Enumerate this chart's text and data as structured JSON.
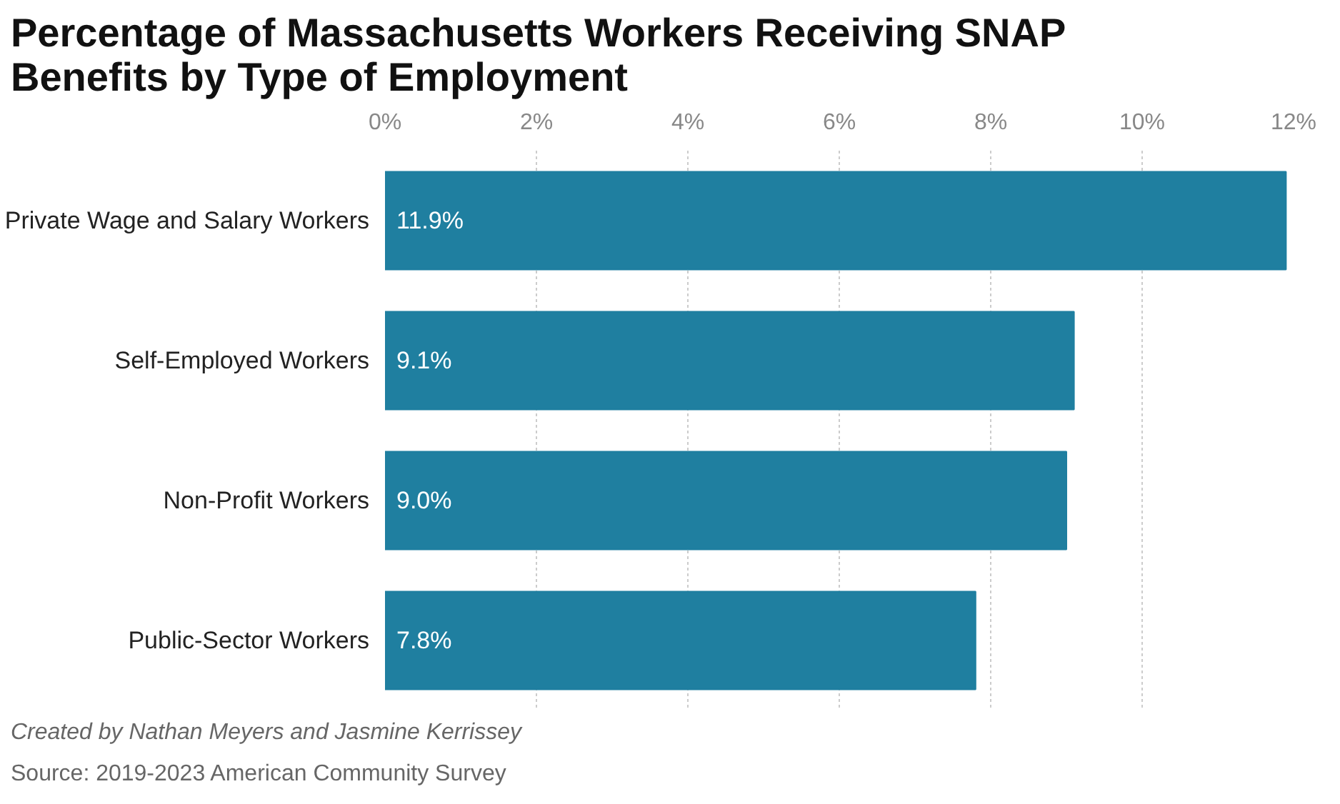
{
  "chart_data": {
    "type": "bar",
    "orientation": "horizontal",
    "title": "Percentage of Massachusetts Workers Receiving SNAP Benefits by Type of Employment",
    "categories": [
      "Private Wage and Salary Workers",
      "Self-Employed Workers",
      "Non-Profit Workers",
      "Public-Sector Workers"
    ],
    "values": [
      11.9,
      9.1,
      9.0,
      7.8
    ],
    "value_labels": [
      "11.9%",
      "9.1%",
      "9.0%",
      "7.8%"
    ],
    "color": "#1f7fa0",
    "xlim": [
      0,
      12
    ],
    "xticks": [
      {
        "value": 0,
        "label": "0%"
      },
      {
        "value": 2,
        "label": "2%"
      },
      {
        "value": 4,
        "label": "4%"
      },
      {
        "value": 6,
        "label": "6%"
      },
      {
        "value": 8,
        "label": "8%"
      },
      {
        "value": 10,
        "label": "10%"
      },
      {
        "value": 12,
        "label": "12%"
      }
    ],
    "grid": "x",
    "annotations": [
      "Created by Nathan Meyers and Jasmine Kerrissey",
      "Source: 2019-2023 American Community Survey"
    ]
  }
}
